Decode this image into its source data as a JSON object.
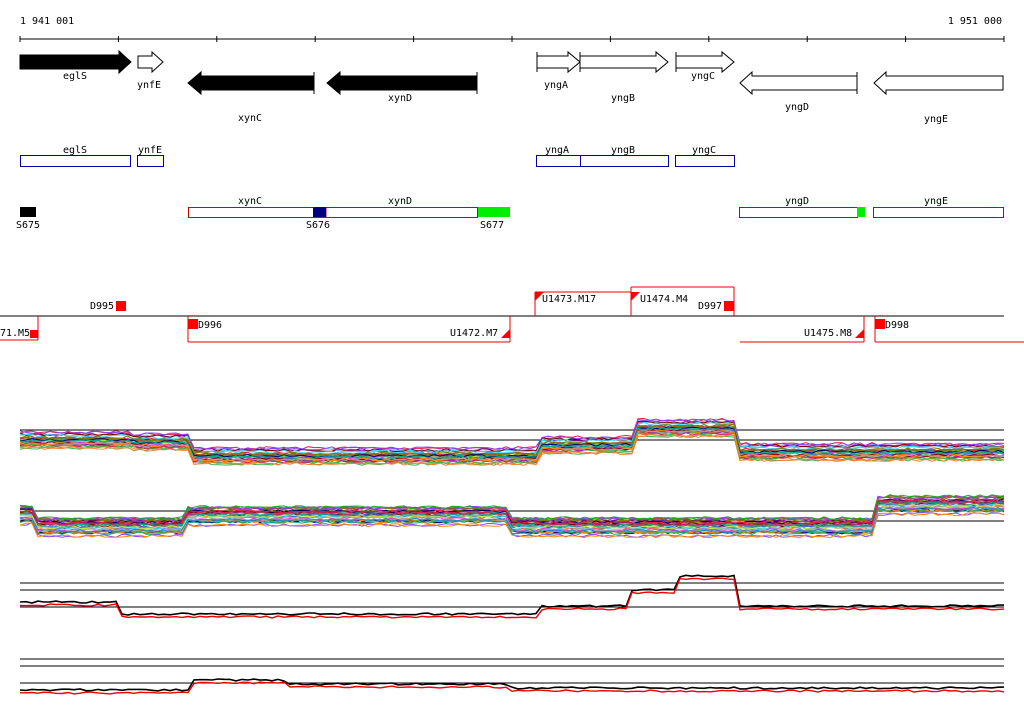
{
  "ruler": {
    "start_label": "1 941 001",
    "end_label": "1 951 000"
  },
  "genes_top": [
    {
      "name": "eglS",
      "strand": "+",
      "fill": "#000000"
    },
    {
      "name": "ynfE",
      "strand": "+",
      "fill": "#ffffff"
    },
    {
      "name": "xynC",
      "strand": "-",
      "fill": "#000000"
    },
    {
      "name": "xynD",
      "strand": "-",
      "fill": "#000000"
    },
    {
      "name": "yngA",
      "strand": "+",
      "fill": "#ffffff"
    },
    {
      "name": "yngB",
      "strand": "+",
      "fill": "#ffffff"
    },
    {
      "name": "yngC",
      "strand": "+",
      "fill": "#ffffff"
    },
    {
      "name": "yngD",
      "strand": "-",
      "fill": "#ffffff"
    },
    {
      "name": "yngE",
      "strand": "-",
      "fill": "#ffffff"
    }
  ],
  "blue_boxes": [
    "eglS",
    "ynfE",
    "yngA",
    "yngB",
    "yngC"
  ],
  "red_boxes": [
    "xynC",
    "xynD",
    "yngD",
    "yngE"
  ],
  "small_markers": [
    {
      "name": "S675",
      "color": "#000000"
    },
    {
      "name": "S676",
      "color": "#000080"
    },
    {
      "name": "S677",
      "color": "#00ee00"
    }
  ],
  "segments": [
    "71.M5",
    "D995",
    "D996",
    "U1472.M7",
    "U1473.M17",
    "U1474.M4",
    "D997",
    "U1475.M8",
    "D998"
  ],
  "colors": {
    "gene_outline_blue": "#0000aa",
    "gene_outline_red": "#cc0000",
    "marker_red": "#ff0000",
    "yngD_green": "#00ee00"
  }
}
